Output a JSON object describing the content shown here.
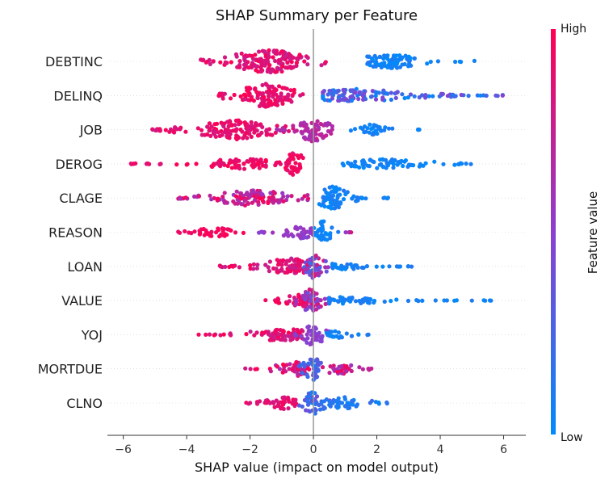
{
  "chart_data": {
    "type": "scatter",
    "title": "SHAP Summary per Feature",
    "xlabel": "SHAP value (impact on model output)",
    "xlim": [
      -6.5,
      6.7
    ],
    "xticks": [
      "−6",
      "−4",
      "−2",
      "0",
      "2",
      "4",
      "6"
    ],
    "xtick_values": [
      -6,
      -4,
      -2,
      0,
      2,
      4,
      6
    ],
    "colorbar": {
      "label": "Feature value",
      "high_label": "High",
      "low_label": "Low",
      "high_color": "#ff0052",
      "mid_color": "#8b3fd0",
      "low_color": "#008bfb"
    },
    "zero_line_color": "#999999",
    "features": [
      {
        "name": "DEBTINC",
        "segments": [
          {
            "from": -3.6,
            "to": 0.4,
            "peak": -1.4,
            "value_lo": 0.75,
            "value_hi": 1.0,
            "density": 1.0
          },
          {
            "from": 1.7,
            "to": 5.3,
            "peak": 2.4,
            "value_lo": 0.0,
            "value_hi": 0.12,
            "density": 0.6
          }
        ]
      },
      {
        "name": "DELINQ",
        "segments": [
          {
            "from": -3.1,
            "to": -0.2,
            "peak": -1.5,
            "value_lo": 0.8,
            "value_hi": 1.0,
            "density": 1.0
          },
          {
            "from": 0.3,
            "to": 6.1,
            "peak": 1.4,
            "value_lo": 0.0,
            "value_hi": 0.5,
            "density": 0.55
          }
        ]
      },
      {
        "name": "JOB",
        "segments": [
          {
            "from": -5.1,
            "to": -0.5,
            "peak": -2.4,
            "value_lo": 0.8,
            "value_hi": 1.0,
            "density": 0.8
          },
          {
            "from": -1.2,
            "to": 0.6,
            "peak": 0.0,
            "value_lo": 0.6,
            "value_hi": 0.75,
            "density": 1.0
          },
          {
            "from": 1.1,
            "to": 2.5,
            "peak": 1.9,
            "value_lo": 0.0,
            "value_hi": 0.15,
            "density": 0.5
          },
          {
            "from": 3.3,
            "to": 3.35,
            "peak": 3.3,
            "value_lo": 0.0,
            "value_hi": 0.05,
            "density": 0.02
          }
        ]
      },
      {
        "name": "DEROG",
        "segments": [
          {
            "from": -5.8,
            "to": -1.5,
            "peak": -2.2,
            "value_lo": 0.85,
            "value_hi": 1.0,
            "density": 0.45
          },
          {
            "from": -1.4,
            "to": -0.2,
            "peak": -0.6,
            "value_lo": 0.85,
            "value_hi": 1.0,
            "density": 1.0
          },
          {
            "from": 0.7,
            "to": 5.4,
            "peak": 2.2,
            "value_lo": 0.0,
            "value_hi": 0.1,
            "density": 0.4
          }
        ]
      },
      {
        "name": "CLAGE",
        "segments": [
          {
            "from": -4.3,
            "to": -0.1,
            "peak": -1.8,
            "value_lo": 0.55,
            "value_hi": 1.0,
            "density": 0.7
          },
          {
            "from": 0.1,
            "to": 1.7,
            "peak": 0.6,
            "value_lo": 0.0,
            "value_hi": 0.15,
            "density": 1.0
          },
          {
            "from": 2.2,
            "to": 2.4,
            "peak": 2.3,
            "value_lo": 0.0,
            "value_hi": 0.1,
            "density": 0.05
          }
        ]
      },
      {
        "name": "REASON",
        "segments": [
          {
            "from": -4.3,
            "to": -2.0,
            "peak": -3.0,
            "value_lo": 0.9,
            "value_hi": 1.0,
            "density": 0.4
          },
          {
            "from": -1.8,
            "to": 0.0,
            "peak": -0.4,
            "value_lo": 0.45,
            "value_hi": 0.6,
            "density": 0.55
          },
          {
            "from": 0.0,
            "to": 0.8,
            "peak": 0.3,
            "value_lo": 0.0,
            "value_hi": 0.1,
            "density": 1.0
          },
          {
            "from": 1.0,
            "to": 1.3,
            "peak": 1.1,
            "value_lo": 0.5,
            "value_hi": 1.0,
            "density": 0.05
          }
        ]
      },
      {
        "name": "LOAN",
        "segments": [
          {
            "from": -3.0,
            "to": 0.0,
            "peak": -0.7,
            "value_lo": 0.75,
            "value_hi": 1.0,
            "density": 0.7
          },
          {
            "from": -0.6,
            "to": 0.6,
            "peak": 0.0,
            "value_lo": 0.2,
            "value_hi": 0.9,
            "density": 1.0
          },
          {
            "from": 0.6,
            "to": 3.1,
            "peak": 1.0,
            "value_lo": 0.0,
            "value_hi": 0.15,
            "density": 0.3
          }
        ]
      },
      {
        "name": "VALUE",
        "segments": [
          {
            "from": -1.7,
            "to": 0.1,
            "peak": -0.4,
            "value_lo": 0.8,
            "value_hi": 1.0,
            "density": 0.55
          },
          {
            "from": -0.6,
            "to": 0.6,
            "peak": -0.1,
            "value_lo": 0.35,
            "value_hi": 0.9,
            "density": 1.0
          },
          {
            "from": 0.5,
            "to": 5.7,
            "peak": 1.0,
            "value_lo": 0.0,
            "value_hi": 0.12,
            "density": 0.3
          }
        ]
      },
      {
        "name": "YOJ",
        "segments": [
          {
            "from": -3.7,
            "to": -0.3,
            "peak": -1.0,
            "value_lo": 0.75,
            "value_hi": 1.0,
            "density": 0.55
          },
          {
            "from": -0.6,
            "to": 0.5,
            "peak": 0.0,
            "value_lo": 0.45,
            "value_hi": 0.55,
            "density": 1.0
          },
          {
            "from": 0.4,
            "to": 2.1,
            "peak": 0.7,
            "value_lo": 0.0,
            "value_hi": 0.15,
            "density": 0.3
          }
        ]
      },
      {
        "name": "MORTDUE",
        "segments": [
          {
            "from": -2.2,
            "to": 0.0,
            "peak": -0.5,
            "value_lo": 0.6,
            "value_hi": 1.0,
            "density": 0.6
          },
          {
            "from": -0.5,
            "to": 0.5,
            "peak": 0.0,
            "value_lo": 0.1,
            "value_hi": 0.35,
            "density": 1.0
          },
          {
            "from": 0.2,
            "to": 2.2,
            "peak": 0.8,
            "value_lo": 0.55,
            "value_hi": 1.0,
            "density": 0.45
          }
        ]
      },
      {
        "name": "CLNO",
        "segments": [
          {
            "from": -2.2,
            "to": -0.3,
            "peak": -1.0,
            "value_lo": 0.8,
            "value_hi": 1.0,
            "density": 0.55
          },
          {
            "from": -0.5,
            "to": 0.6,
            "peak": 0.0,
            "value_lo": 0.05,
            "value_hi": 0.4,
            "density": 1.0
          },
          {
            "from": 0.5,
            "to": 2.6,
            "peak": 1.0,
            "value_lo": 0.0,
            "value_hi": 0.2,
            "density": 0.5
          }
        ]
      }
    ]
  }
}
